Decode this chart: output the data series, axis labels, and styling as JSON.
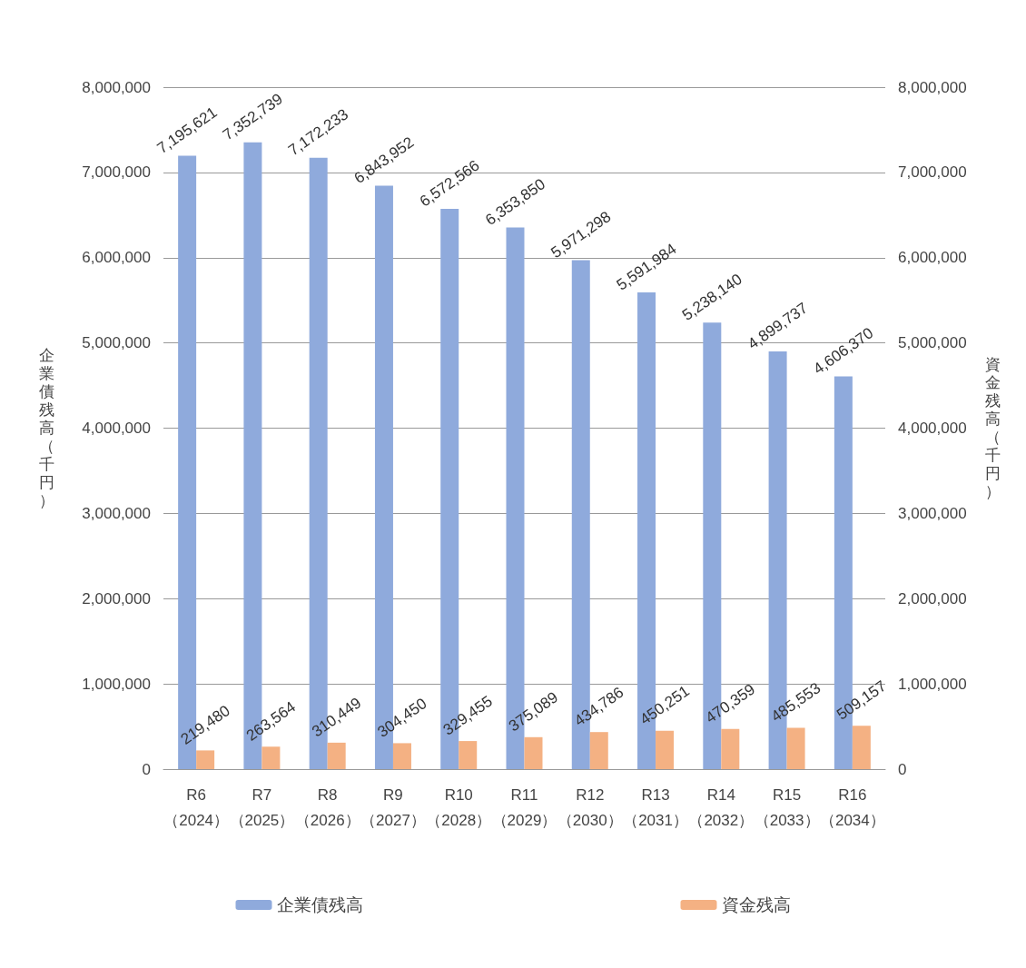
{
  "chart_data": {
    "type": "bar",
    "ylabel": "企業債残高（千円）",
    "y2label": "資金残高（千円）",
    "categories": [
      "R6\n（2024）",
      "R7\n（2025）",
      "R8\n（2026）",
      "R9\n（2027）",
      "R10\n（2028）",
      "R11\n（2029）",
      "R12\n（2030）",
      "R13\n（2031）",
      "R14\n（2032）",
      "R15\n（2033）",
      "R16\n（2034）"
    ],
    "series": [
      {
        "name": "企業債残高",
        "color": "#8faadc",
        "values": [
          7195621,
          7352739,
          7172233,
          6843952,
          6572566,
          6353850,
          5971298,
          5591984,
          5238140,
          4899737,
          4606370
        ],
        "value_labels": [
          "7,195,621",
          "7,352,739",
          "7,172,233",
          "6,843,952",
          "6,572,566",
          "6,353,850",
          "5,971,298",
          "5,591,984",
          "5,238,140",
          "4,899,737",
          "4,606,370"
        ]
      },
      {
        "name": "資金残高",
        "color": "#f4b183",
        "axis": "y2",
        "values": [
          219480,
          263564,
          310449,
          304450,
          329455,
          375089,
          434786,
          450251,
          470359,
          485553,
          509157
        ],
        "value_labels": [
          "219,480",
          "263,564",
          "310,449",
          "304,450",
          "329,455",
          "375,089",
          "434,786",
          "450,251",
          "470,359",
          "485,553",
          "509,157"
        ]
      }
    ],
    "ylim": [
      0,
      8000000
    ],
    "yticks": [
      0,
      {
        "value": 1000000,
        "label": "1,000,000"
      },
      {
        "value": 2000000,
        "label": "2,000,000"
      },
      {
        "value": 3000000,
        "label": "3,000,000"
      },
      {
        "value": 4000000,
        "label": "4,000,000"
      },
      {
        "value": 5000000,
        "label": "5,000,000"
      },
      {
        "value": 6000000,
        "label": "6,000,000"
      },
      {
        "value": 7000000,
        "label": "7,000,000"
      },
      {
        "value": 8000000,
        "label": "8,000,000"
      }
    ],
    "y2lim": [
      0,
      8000000
    ],
    "y2ticks": [
      0,
      {
        "value": 1000000,
        "label": "1,000,000"
      },
      {
        "value": 2000000,
        "label": "2,000,000"
      },
      {
        "value": 3000000,
        "label": "3,000,000"
      },
      {
        "value": 4000000,
        "label": "4,000,000"
      },
      {
        "value": 5000000,
        "label": "5,000,000"
      },
      {
        "value": 6000000,
        "label": "6,000,000"
      },
      {
        "value": 7000000,
        "label": "7,000,000"
      },
      {
        "value": 8000000,
        "label": "8,000,000"
      }
    ],
    "grid": "y",
    "legend": "bottom"
  }
}
